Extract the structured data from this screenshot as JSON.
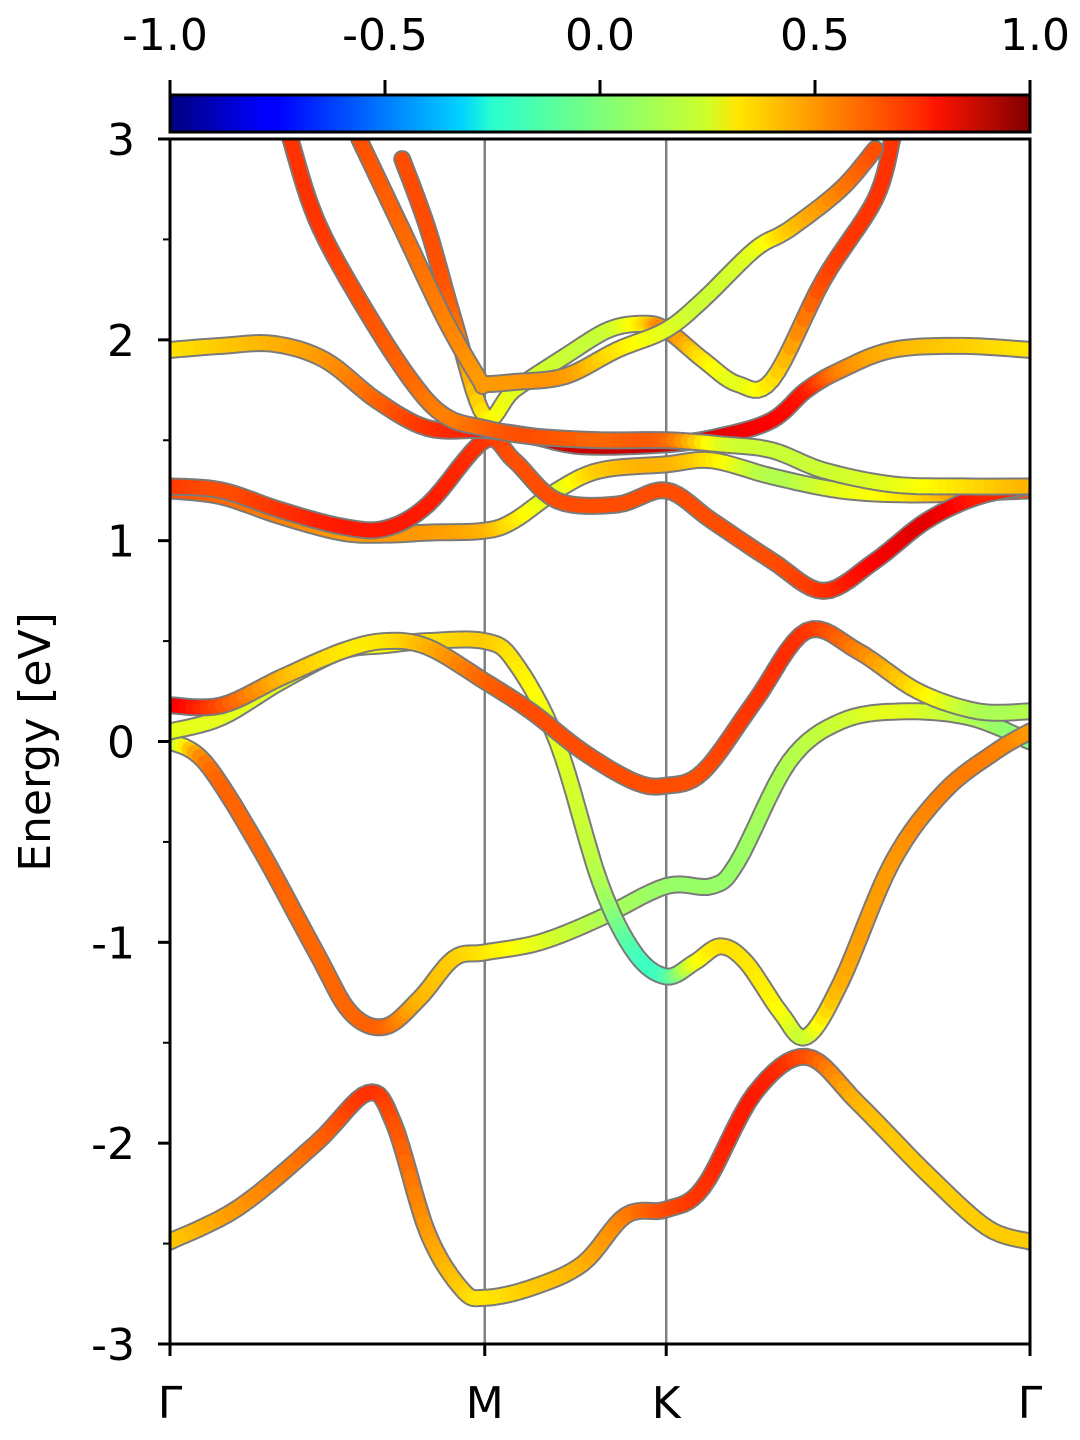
{
  "chart_data": {
    "type": "line",
    "title": "",
    "ylabel": "Energy [eV]",
    "xlabel": "",
    "ylim": [
      -3,
      3
    ],
    "yticks": [
      -3,
      -2,
      -1,
      0,
      1,
      2,
      3
    ],
    "yticklabels": [
      "-3",
      "-2",
      "-1",
      "0",
      "1",
      "2",
      "3"
    ],
    "ymin_ticks": [
      -2.5,
      -1.5,
      -0.5,
      0.5,
      1.5,
      2.5
    ],
    "xlim": [
      0,
      1
    ],
    "kpoints": [
      {
        "label": "Γ",
        "x": 0.0
      },
      {
        "label": "M",
        "x": 0.366
      },
      {
        "label": "K",
        "x": 0.577
      },
      {
        "label": "Γ",
        "x": 1.0
      }
    ],
    "grid": false,
    "colorbar": {
      "colormap": "jet",
      "range": [
        -1.0,
        1.0
      ],
      "ticks": [
        -1.0,
        -0.5,
        0.0,
        0.5,
        1.0
      ],
      "ticklabels": [
        "-1.0",
        "-0.5",
        "0.0",
        "0.5",
        "1.0"
      ],
      "placement": "top"
    },
    "series": [
      {
        "id": "band-1",
        "points": [
          [
            0,
            -2.49
          ],
          [
            0.08,
            -2.32
          ],
          [
            0.17,
            -2.0
          ],
          [
            0.23,
            -1.75
          ],
          [
            0.26,
            -1.9
          ],
          [
            0.3,
            -2.45
          ],
          [
            0.34,
            -2.73
          ],
          [
            0.366,
            -2.77
          ],
          [
            0.42,
            -2.72
          ],
          [
            0.48,
            -2.6
          ],
          [
            0.53,
            -2.36
          ],
          [
            0.577,
            -2.33
          ],
          [
            0.62,
            -2.22
          ],
          [
            0.68,
            -1.75
          ],
          [
            0.74,
            -1.57
          ],
          [
            0.8,
            -1.8
          ],
          [
            0.88,
            -2.15
          ],
          [
            0.95,
            -2.42
          ],
          [
            1,
            -2.49
          ]
        ],
        "weights": [
          0.35,
          0.45,
          0.55,
          0.65,
          0.6,
          0.45,
          0.35,
          0.3,
          0.35,
          0.4,
          0.5,
          0.6,
          0.65,
          0.7,
          0.6,
          0.4,
          0.35,
          0.35,
          0.35
        ]
      },
      {
        "id": "band-2",
        "points": [
          [
            0,
            0.0
          ],
          [
            0.04,
            -0.1
          ],
          [
            0.1,
            -0.5
          ],
          [
            0.17,
            -1.05
          ],
          [
            0.21,
            -1.35
          ],
          [
            0.25,
            -1.42
          ],
          [
            0.29,
            -1.28
          ],
          [
            0.33,
            -1.08
          ],
          [
            0.366,
            -1.05
          ],
          [
            0.43,
            -1.0
          ],
          [
            0.5,
            -0.88
          ],
          [
            0.577,
            -0.72
          ],
          [
            0.63,
            -0.72
          ],
          [
            0.66,
            -0.6
          ],
          [
            0.72,
            -0.1
          ],
          [
            0.78,
            0.1
          ],
          [
            0.85,
            0.15
          ],
          [
            0.93,
            0.12
          ],
          [
            1,
            0.0
          ]
        ],
        "weights": [
          0.0,
          0.5,
          0.55,
          0.55,
          0.55,
          0.55,
          0.4,
          0.35,
          0.3,
          0.2,
          0.1,
          0.05,
          0.05,
          0.05,
          0.1,
          0.15,
          0.2,
          0.1,
          0.0
        ]
      },
      {
        "id": "band-3",
        "points": [
          [
            0,
            0.05
          ],
          [
            0.06,
            0.12
          ],
          [
            0.13,
            0.3
          ],
          [
            0.2,
            0.45
          ],
          [
            0.25,
            0.48
          ],
          [
            0.3,
            0.5
          ],
          [
            0.366,
            0.5
          ],
          [
            0.4,
            0.4
          ],
          [
            0.45,
            0.0
          ],
          [
            0.5,
            -0.7
          ],
          [
            0.54,
            -1.05
          ],
          [
            0.577,
            -1.17
          ],
          [
            0.61,
            -1.1
          ],
          [
            0.64,
            -1.02
          ],
          [
            0.67,
            -1.1
          ],
          [
            0.71,
            -1.35
          ],
          [
            0.74,
            -1.47
          ],
          [
            0.78,
            -1.2
          ],
          [
            0.84,
            -0.6
          ],
          [
            0.9,
            -0.25
          ],
          [
            0.96,
            -0.05
          ],
          [
            1,
            0.05
          ]
        ],
        "weights": [
          0.2,
          0.2,
          0.2,
          0.25,
          0.25,
          0.3,
          0.35,
          0.3,
          0.2,
          0.1,
          -0.1,
          -0.1,
          0.2,
          0.3,
          0.3,
          0.25,
          0.15,
          0.4,
          0.45,
          0.5,
          0.5,
          0.45
        ]
      },
      {
        "id": "band-4",
        "points": [
          [
            0,
            0.18
          ],
          [
            0.06,
            0.18
          ],
          [
            0.13,
            0.32
          ],
          [
            0.2,
            0.45
          ],
          [
            0.25,
            0.5
          ],
          [
            0.3,
            0.47
          ],
          [
            0.366,
            0.3
          ],
          [
            0.42,
            0.15
          ],
          [
            0.48,
            -0.05
          ],
          [
            0.54,
            -0.2
          ],
          [
            0.577,
            -0.22
          ],
          [
            0.62,
            -0.15
          ],
          [
            0.68,
            0.2
          ],
          [
            0.74,
            0.55
          ],
          [
            0.8,
            0.45
          ],
          [
            0.87,
            0.25
          ],
          [
            0.94,
            0.15
          ],
          [
            1,
            0.15
          ]
        ],
        "weights": [
          0.8,
          0.6,
          0.4,
          0.3,
          0.3,
          0.4,
          0.55,
          0.6,
          0.6,
          0.6,
          0.6,
          0.6,
          0.65,
          0.65,
          0.5,
          0.3,
          0.1,
          0.1
        ]
      },
      {
        "id": "band-5",
        "points": [
          [
            0,
            1.25
          ],
          [
            0.06,
            1.22
          ],
          [
            0.13,
            1.12
          ],
          [
            0.2,
            1.04
          ],
          [
            0.25,
            1.03
          ],
          [
            0.3,
            1.04
          ],
          [
            0.366,
            1.05
          ],
          [
            0.4,
            1.1
          ],
          [
            0.45,
            1.25
          ],
          [
            0.5,
            1.35
          ],
          [
            0.577,
            1.38
          ],
          [
            0.63,
            1.4
          ],
          [
            0.7,
            1.32
          ],
          [
            0.78,
            1.25
          ],
          [
            0.86,
            1.23
          ],
          [
            0.94,
            1.24
          ],
          [
            1,
            1.25
          ]
        ],
        "weights": [
          0.6,
          0.55,
          0.5,
          0.45,
          0.45,
          0.45,
          0.4,
          0.3,
          0.2,
          0.35,
          0.4,
          0.3,
          0.1,
          0.2,
          0.3,
          0.5,
          0.6
        ]
      },
      {
        "id": "band-6",
        "points": [
          [
            0,
            1.27
          ],
          [
            0.06,
            1.25
          ],
          [
            0.13,
            1.15
          ],
          [
            0.2,
            1.07
          ],
          [
            0.25,
            1.06
          ],
          [
            0.3,
            1.18
          ],
          [
            0.366,
            1.5
          ],
          [
            0.4,
            1.4
          ],
          [
            0.45,
            1.2
          ],
          [
            0.52,
            1.18
          ],
          [
            0.577,
            1.25
          ],
          [
            0.63,
            1.1
          ],
          [
            0.7,
            0.9
          ],
          [
            0.76,
            0.75
          ],
          [
            0.82,
            0.9
          ],
          [
            0.88,
            1.1
          ],
          [
            0.94,
            1.22
          ],
          [
            1,
            1.27
          ]
        ],
        "weights": [
          0.65,
          0.6,
          0.65,
          0.7,
          0.7,
          0.7,
          0.65,
          0.6,
          0.6,
          0.6,
          0.6,
          0.6,
          0.6,
          0.65,
          0.75,
          0.8,
          0.7,
          0.65
        ]
      },
      {
        "id": "band-7",
        "points": [
          [
            0,
            1.95
          ],
          [
            0.06,
            1.97
          ],
          [
            0.12,
            1.98
          ],
          [
            0.18,
            1.9
          ],
          [
            0.24,
            1.7
          ],
          [
            0.3,
            1.56
          ],
          [
            0.366,
            1.55
          ],
          [
            0.42,
            1.52
          ],
          [
            0.48,
            1.47
          ],
          [
            0.577,
            1.48
          ],
          [
            0.64,
            1.52
          ],
          [
            0.7,
            1.6
          ],
          [
            0.74,
            1.75
          ],
          [
            0.78,
            1.85
          ],
          [
            0.84,
            1.95
          ],
          [
            0.92,
            1.97
          ],
          [
            1,
            1.95
          ]
        ],
        "weights": [
          0.3,
          0.35,
          0.4,
          0.45,
          0.55,
          0.65,
          0.7,
          0.8,
          0.85,
          0.85,
          0.8,
          0.75,
          0.7,
          0.5,
          0.4,
          0.35,
          0.3
        ]
      },
      {
        "id": "band-8",
        "points": [
          [
            0.27,
            2.9
          ],
          [
            0.3,
            2.55
          ],
          [
            0.33,
            2.1
          ],
          [
            0.366,
            1.62
          ],
          [
            0.4,
            1.75
          ],
          [
            0.46,
            1.92
          ],
          [
            0.51,
            2.05
          ],
          [
            0.55,
            2.08
          ],
          [
            0.577,
            2.05
          ],
          [
            0.62,
            1.9
          ],
          [
            0.66,
            1.78
          ],
          [
            0.7,
            1.8
          ],
          [
            0.76,
            2.3
          ],
          [
            0.82,
            2.7
          ],
          [
            0.84,
            3.0
          ]
        ],
        "weights": [
          0.6,
          0.6,
          0.55,
          0.3,
          0.2,
          0.15,
          0.15,
          0.3,
          0.5,
          0.3,
          0.2,
          0.3,
          0.6,
          0.65,
          0.65
        ]
      },
      {
        "id": "band-9",
        "points": [
          [
            0.22,
            3.0
          ],
          [
            0.27,
            2.55
          ],
          [
            0.32,
            2.1
          ],
          [
            0.36,
            1.8
          ],
          [
            0.366,
            1.78
          ],
          [
            0.4,
            1.79
          ],
          [
            0.46,
            1.82
          ],
          [
            0.52,
            1.95
          ],
          [
            0.577,
            2.05
          ],
          [
            0.62,
            2.2
          ],
          [
            0.68,
            2.45
          ],
          [
            0.72,
            2.55
          ],
          [
            0.78,
            2.75
          ],
          [
            0.82,
            2.95
          ]
        ],
        "weights": [
          0.6,
          0.55,
          0.5,
          0.45,
          0.45,
          0.45,
          0.45,
          0.3,
          0.2,
          0.15,
          0.2,
          0.35,
          0.5,
          0.6
        ]
      },
      {
        "id": "band-10",
        "points": [
          [
            0.14,
            3.0
          ],
          [
            0.17,
            2.6
          ],
          [
            0.22,
            2.2
          ],
          [
            0.28,
            1.8
          ],
          [
            0.32,
            1.62
          ],
          [
            0.366,
            1.56
          ],
          [
            0.42,
            1.52
          ],
          [
            0.5,
            1.5
          ],
          [
            0.577,
            1.5
          ],
          [
            0.64,
            1.48
          ],
          [
            0.7,
            1.45
          ],
          [
            0.76,
            1.35
          ],
          [
            0.84,
            1.28
          ],
          [
            0.92,
            1.27
          ],
          [
            1,
            1.27
          ]
        ],
        "weights": [
          0.65,
          0.65,
          0.6,
          0.55,
          0.5,
          0.55,
          0.6,
          0.55,
          0.55,
          0.2,
          0.15,
          0.15,
          0.2,
          0.3,
          0.4
        ]
      }
    ]
  }
}
